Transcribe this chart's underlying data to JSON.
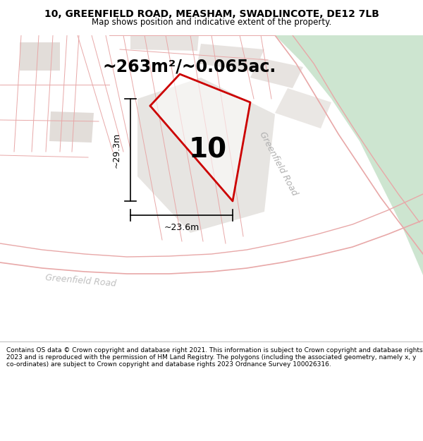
{
  "title": "10, GREENFIELD ROAD, MEASHAM, SWADLINCOTE, DE12 7LB",
  "subtitle": "Map shows position and indicative extent of the property.",
  "footer": "Contains OS data © Crown copyright and database right 2021. This information is subject to Crown copyright and database rights 2023 and is reproduced with the permission of HM Land Registry. The polygons (including the associated geometry, namely x, y co-ordinates) are subject to Crown copyright and database rights 2023 Ordnance Survey 100026316.",
  "area_label": "~263m²/~0.065ac.",
  "number_label": "10",
  "dim_width": "~23.6m",
  "dim_height": "~29.3m",
  "road_label_main": "Greenfield Road",
  "road_label_bottom": "Greenfield Road",
  "bg_color": "#f2ede9",
  "plot_fill": "#e2ddd9",
  "green_fill": "#cde5d0",
  "red_outline": "#cc0000",
  "road_line_color": "#e8a8a8",
  "title_fontsize": 10,
  "subtitle_fontsize": 8.5,
  "footer_fontsize": 6.5,
  "area_fontsize": 17,
  "number_fontsize": 28,
  "dim_fontsize": 9
}
